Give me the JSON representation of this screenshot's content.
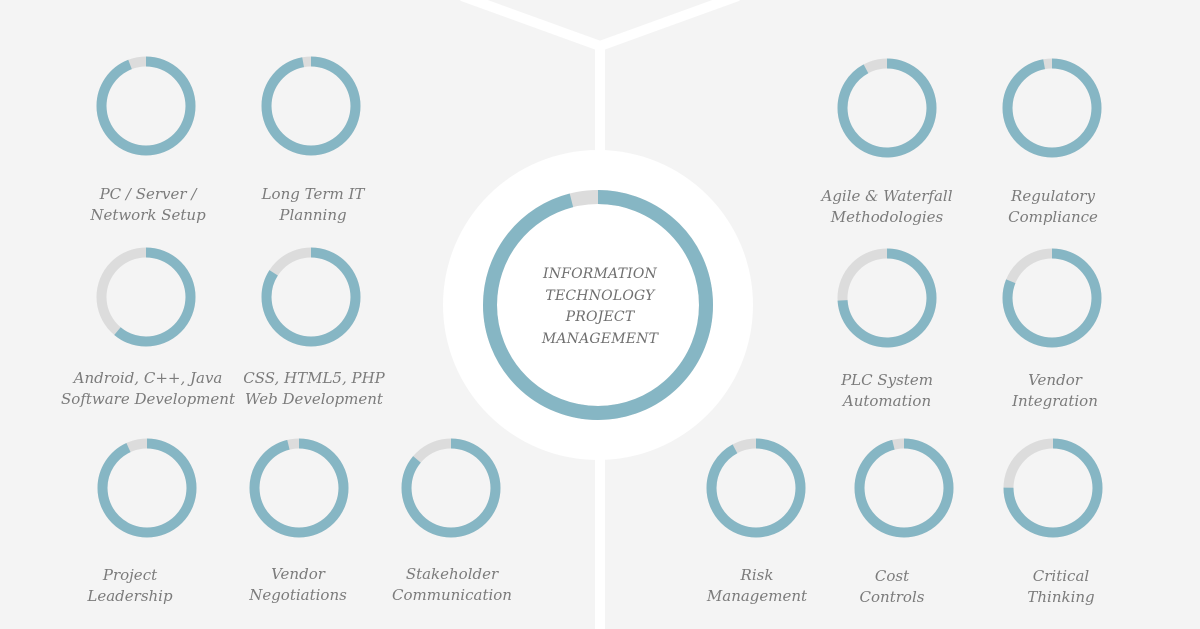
{
  "title_lines": [
    "INFORMATION",
    "TECHNOLOGY",
    "PROJECT",
    "MANAGEMENT"
  ],
  "colors": {
    "background": "#f4f4f4",
    "divider": "#ffffff",
    "ring_fill": "#86b6c4",
    "ring_track": "#dcdcdc",
    "label": "#7b7b7b"
  },
  "main_skill": {
    "name": "Information Technology Project Management",
    "level": 0.96
  },
  "skills": [
    {
      "id": "pc-server-network-setup",
      "lines": [
        "PC / Server /",
        "Network Setup"
      ],
      "level": 0.94
    },
    {
      "id": "long-term-it-planning",
      "lines": [
        "Long Term IT",
        "Planning"
      ],
      "level": 0.97
    },
    {
      "id": "android-cpp-java",
      "lines": [
        "Android, C++, Java",
        "Software Development"
      ],
      "level": 0.61
    },
    {
      "id": "css-html5-php",
      "lines": [
        "CSS, HTML5, PHP",
        "Web Development"
      ],
      "level": 0.84
    },
    {
      "id": "project-leadership",
      "lines": [
        "Project",
        "Leadership"
      ],
      "level": 0.93
    },
    {
      "id": "vendor-negotiations",
      "lines": [
        "Vendor",
        "Negotiations"
      ],
      "level": 0.96
    },
    {
      "id": "stakeholder-communication",
      "lines": [
        "Stakeholder",
        "Communication"
      ],
      "level": 0.86
    },
    {
      "id": "agile-waterfall",
      "lines": [
        "Agile & Waterfall",
        "Methodologies"
      ],
      "level": 0.92
    },
    {
      "id": "regulatory-compliance",
      "lines": [
        "Regulatory",
        "Compliance"
      ],
      "level": 0.97
    },
    {
      "id": "plc-system-automation",
      "lines": [
        "PLC System",
        "Automation"
      ],
      "level": 0.74
    },
    {
      "id": "vendor-integration",
      "lines": [
        "Vendor",
        "Integration"
      ],
      "level": 0.81
    },
    {
      "id": "risk-management",
      "lines": [
        "Risk",
        "Management"
      ],
      "level": 0.92
    },
    {
      "id": "cost-controls",
      "lines": [
        "Cost",
        "Controls"
      ],
      "level": 0.96
    },
    {
      "id": "critical-thinking",
      "lines": [
        "Critical",
        "Thinking"
      ],
      "level": 0.75
    }
  ]
}
